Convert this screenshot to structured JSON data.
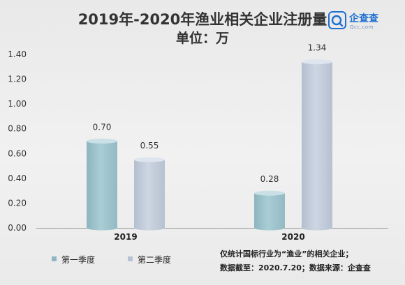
{
  "header": {
    "title_line1": "2019年-2020年渔业相关企业注册量",
    "title_line2": "单位：万"
  },
  "brand": {
    "name": "企查查",
    "url": "Qcc.com",
    "logo_icon": "qcc-logo-icon"
  },
  "colors": {
    "series_q1": "#a3c7cf",
    "series_q2": "#c3cddb",
    "axis": "#9a9a9a",
    "text": "#333333"
  },
  "chart_data": {
    "type": "bar",
    "style": "3d-cylinder",
    "title": "2019年-2020年渔业相关企业注册量",
    "subtitle": "单位：万",
    "categories": [
      "2019",
      "2020"
    ],
    "series": [
      {
        "name": "第一季度",
        "values": [
          0.7,
          0.28
        ]
      },
      {
        "name": "第二季度",
        "values": [
          0.55,
          1.34
        ]
      }
    ],
    "data_labels": [
      [
        "0.70",
        "0.28"
      ],
      [
        "0.55",
        "1.34"
      ]
    ],
    "ylim": [
      0,
      1.4
    ],
    "yticks": [
      "0.00",
      "0.20",
      "0.40",
      "0.60",
      "0.80",
      "1.00",
      "1.20",
      "1.40"
    ],
    "grid": false,
    "legend_position": "bottom-left"
  },
  "legend": [
    {
      "label": "第一季度",
      "color": "#8fb7c2"
    },
    {
      "label": "第二季度",
      "color": "#b7c2d3"
    }
  ],
  "notes": {
    "line1": "仅统计国标行业为“渔业”的相关企业；",
    "line2": "数据截至：2020.7.20；数据来源：企查查"
  }
}
